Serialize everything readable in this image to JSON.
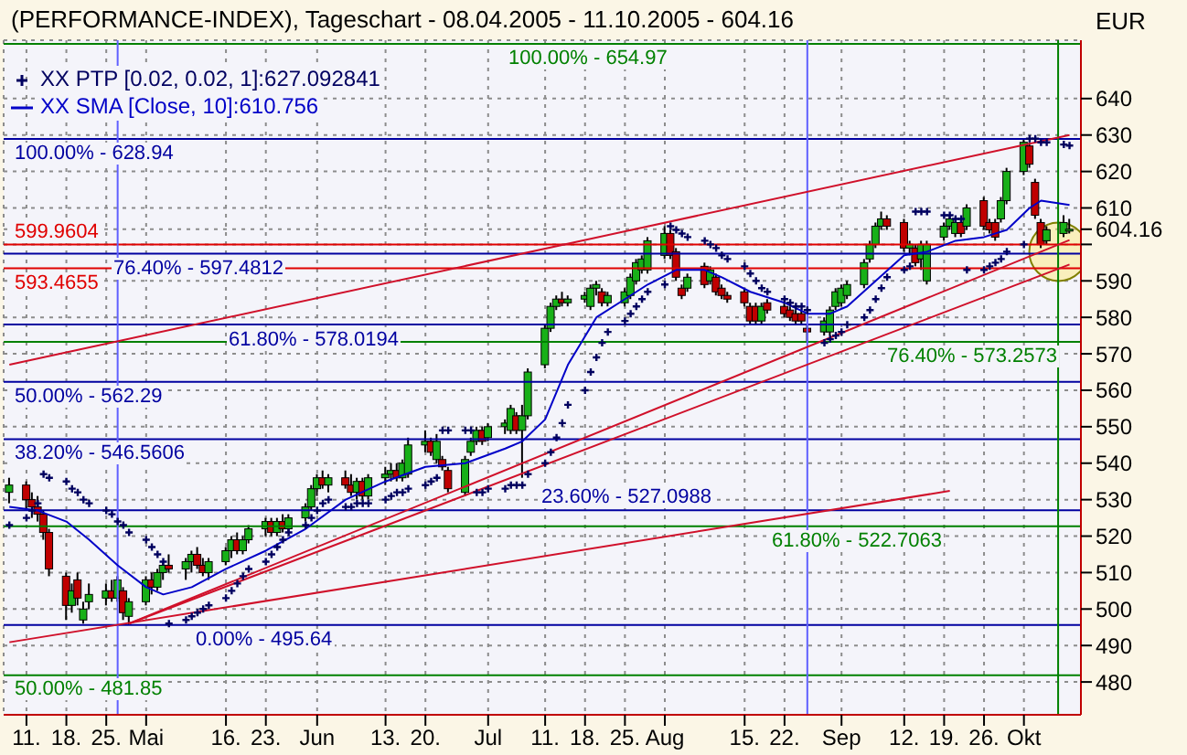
{
  "chart_data": {
    "type": "candlestick",
    "title": "(PERFORMANCE-INDEX), Tageschart - 08.04.2005 - 11.10.2005 - 604.16",
    "ylabel": "EUR",
    "x": [
      "2005-04-08",
      "2005-04-11",
      "2005-04-12",
      "2005-04-13",
      "2005-04-14",
      "2005-04-15",
      "2005-04-18",
      "2005-04-19",
      "2005-04-20",
      "2005-04-21",
      "2005-04-22",
      "2005-04-25",
      "2005-04-26",
      "2005-04-27",
      "2005-04-28",
      "2005-04-29",
      "2005-05-02",
      "2005-05-03",
      "2005-05-04",
      "2005-05-05",
      "2005-05-06",
      "2005-05-09",
      "2005-05-10",
      "2005-05-11",
      "2005-05-12",
      "2005-05-13",
      "2005-05-16",
      "2005-05-17",
      "2005-05-18",
      "2005-05-19",
      "2005-05-20",
      "2005-05-23",
      "2005-05-24",
      "2005-05-25",
      "2005-05-26",
      "2005-05-27",
      "2005-05-30",
      "2005-05-31",
      "2005-06-01",
      "2005-06-02",
      "2005-06-03",
      "2005-06-06",
      "2005-06-07",
      "2005-06-08",
      "2005-06-09",
      "2005-06-10",
      "2005-06-13",
      "2005-06-14",
      "2005-06-15",
      "2005-06-16",
      "2005-06-17",
      "2005-06-20",
      "2005-06-21",
      "2005-06-22",
      "2005-06-23",
      "2005-06-24",
      "2005-06-27",
      "2005-06-28",
      "2005-06-29",
      "2005-06-30",
      "2005-07-01",
      "2005-07-04",
      "2005-07-05",
      "2005-07-06",
      "2005-07-07",
      "2005-07-08",
      "2005-07-11",
      "2005-07-12",
      "2005-07-13",
      "2005-07-14",
      "2005-07-15",
      "2005-07-18",
      "2005-07-19",
      "2005-07-20",
      "2005-07-21",
      "2005-07-22",
      "2005-07-25",
      "2005-07-26",
      "2005-07-27",
      "2005-07-28",
      "2005-07-29",
      "2005-08-01",
      "2005-08-02",
      "2005-08-03",
      "2005-08-04",
      "2005-08-05",
      "2005-08-08",
      "2005-08-09",
      "2005-08-10",
      "2005-08-11",
      "2005-08-12",
      "2005-08-15",
      "2005-08-16",
      "2005-08-17",
      "2005-08-18",
      "2005-08-19",
      "2005-08-22",
      "2005-08-23",
      "2005-08-24",
      "2005-08-25",
      "2005-08-26",
      "2005-08-29",
      "2005-08-30",
      "2005-08-31",
      "2005-09-01",
      "2005-09-02",
      "2005-09-05",
      "2005-09-06",
      "2005-09-07",
      "2005-09-08",
      "2005-09-09",
      "2005-09-12",
      "2005-09-13",
      "2005-09-14",
      "2005-09-15",
      "2005-09-16",
      "2005-09-19",
      "2005-09-20",
      "2005-09-21",
      "2005-09-22",
      "2005-09-23",
      "2005-09-26",
      "2005-09-27",
      "2005-09-28",
      "2005-09-29",
      "2005-09-30",
      "2005-10-03",
      "2005-10-04",
      "2005-10-05",
      "2005-10-06",
      "2005-10-07",
      "2005-10-10",
      "2005-10-11"
    ],
    "ohlc": [
      [
        532,
        536,
        529,
        534
      ],
      [
        534,
        535,
        527,
        530
      ],
      [
        530,
        532,
        525,
        528
      ],
      [
        528,
        531,
        524,
        526
      ],
      [
        526,
        527,
        519,
        521
      ],
      [
        521,
        522,
        509,
        511
      ],
      [
        509,
        510,
        497,
        501
      ],
      [
        501,
        507,
        499,
        505
      ],
      [
        508,
        510,
        501,
        503
      ],
      [
        497,
        502,
        496,
        500
      ],
      [
        502,
        507,
        500,
        504
      ],
      [
        503,
        507,
        501,
        505
      ],
      [
        505,
        508,
        502,
        503
      ],
      [
        503,
        509,
        502,
        508
      ],
      [
        505,
        506,
        497,
        499
      ],
      [
        498,
        503,
        495.64,
        502
      ],
      [
        502,
        509,
        501,
        508
      ],
      [
        508,
        510,
        504,
        506
      ],
      [
        506,
        511,
        505,
        510
      ],
      [
        510,
        513,
        508,
        512
      ],
      [
        512,
        515,
        510,
        511
      ],
      [
        511,
        514,
        508,
        513
      ],
      [
        513,
        516,
        510,
        515
      ],
      [
        515,
        517,
        511,
        512
      ],
      [
        512,
        514,
        509,
        510
      ],
      [
        510,
        514,
        508,
        513
      ],
      [
        513,
        517,
        512,
        516
      ],
      [
        516,
        520,
        514,
        519
      ],
      [
        519,
        521,
        515,
        516
      ],
      [
        516,
        520,
        515,
        519
      ],
      [
        519,
        523,
        518,
        522
      ],
      [
        522,
        525,
        520,
        524
      ],
      [
        524,
        525,
        520,
        521
      ],
      [
        521,
        525,
        520,
        524
      ],
      [
        524,
        526,
        521,
        522
      ],
      [
        522,
        526,
        521,
        525
      ],
      [
        525,
        529,
        524,
        528
      ],
      [
        528,
        534,
        527,
        533
      ],
      [
        533,
        537,
        531,
        536
      ],
      [
        536,
        538,
        533,
        534
      ],
      [
        534,
        537,
        532,
        536
      ],
      [
        536,
        538,
        533,
        534
      ],
      [
        534,
        537,
        531,
        532
      ],
      [
        532,
        536,
        530,
        535
      ],
      [
        535,
        536,
        530,
        531
      ],
      [
        531,
        537,
        530,
        536
      ],
      [
        536,
        539,
        534,
        537
      ],
      [
        537,
        540,
        535,
        538
      ],
      [
        538,
        540,
        535,
        536
      ],
      [
        536,
        541,
        535,
        540
      ],
      [
        537,
        547,
        536,
        545
      ],
      [
        545,
        549,
        543,
        546
      ],
      [
        546,
        547,
        542,
        543
      ],
      [
        541,
        548,
        540,
        546
      ],
      [
        541,
        542,
        538,
        539
      ],
      [
        538,
        539,
        532,
        533
      ],
      [
        532,
        542,
        531,
        541
      ],
      [
        543,
        547,
        542,
        546
      ],
      [
        546,
        550,
        545,
        549
      ],
      [
        549,
        550,
        545,
        546
      ],
      [
        547,
        551,
        546,
        550
      ],
      [
        550,
        552,
        548,
        551
      ],
      [
        549,
        556,
        548,
        555
      ],
      [
        553,
        554,
        548,
        549
      ],
      [
        549,
        556,
        536,
        553
      ],
      [
        553,
        566,
        552,
        565
      ],
      [
        567,
        578,
        566,
        577
      ],
      [
        577,
        584,
        576,
        583
      ],
      [
        583,
        586,
        582,
        585
      ],
      [
        585,
        587,
        583,
        584
      ],
      [
        584,
        586,
        583,
        585
      ],
      [
        585,
        587,
        584,
        586
      ],
      [
        583,
        589,
        582,
        588
      ],
      [
        588,
        590,
        586,
        589
      ],
      [
        587,
        588,
        583,
        584
      ],
      [
        584,
        587,
        583,
        586
      ],
      [
        584,
        588,
        583,
        587
      ],
      [
        586,
        592,
        585,
        591
      ],
      [
        590,
        596,
        589,
        595
      ],
      [
        593,
        597,
        592,
        596
      ],
      [
        593,
        602,
        592,
        601
      ],
      [
        597,
        605,
        596,
        603
      ],
      [
        603,
        604,
        596,
        597
      ],
      [
        598,
        599,
        590,
        591
      ],
      [
        588,
        589,
        585,
        586
      ],
      [
        588,
        592,
        587,
        591
      ],
      [
        594,
        595,
        588,
        589
      ],
      [
        590,
        594,
        589,
        593
      ],
      [
        591,
        592,
        586,
        587
      ],
      [
        588,
        589,
        585,
        586
      ],
      [
        586,
        587,
        584,
        585
      ],
      [
        587,
        588,
        583,
        584
      ],
      [
        583,
        584,
        578,
        579
      ],
      [
        583,
        584,
        578,
        579
      ],
      [
        579,
        584,
        578,
        583
      ],
      [
        584,
        585,
        581,
        582
      ],
      [
        583,
        584,
        580,
        581
      ],
      [
        582,
        583,
        579,
        580
      ],
      [
        581,
        582,
        578,
        579
      ],
      [
        581,
        582,
        578,
        579
      ],
      [
        577,
        578,
        573,
        576
      ],
      [
        576,
        580,
        575,
        579
      ],
      [
        576,
        583,
        575,
        582
      ],
      [
        583,
        588,
        582,
        587
      ],
      [
        584,
        589,
        583,
        588
      ],
      [
        586,
        590,
        585,
        589
      ],
      [
        589,
        596,
        588,
        595
      ],
      [
        596,
        601,
        595,
        600
      ],
      [
        600,
        606,
        599,
        605
      ],
      [
        605,
        609,
        604,
        607
      ],
      [
        607,
        608,
        604,
        605
      ],
      [
        606,
        607,
        598,
        599
      ],
      [
        599,
        601,
        597,
        600
      ],
      [
        599,
        600,
        594,
        595
      ],
      [
        596,
        601,
        593,
        600
      ],
      [
        590,
        601,
        589,
        600
      ],
      [
        602,
        606,
        601,
        605
      ],
      [
        605,
        608,
        604,
        607
      ],
      [
        603,
        607,
        602,
        606
      ],
      [
        606,
        607,
        602,
        603
      ],
      [
        605,
        611,
        604,
        610
      ],
      [
        612,
        613,
        604,
        605
      ],
      [
        606,
        607,
        603,
        604
      ],
      [
        606,
        607,
        601,
        602
      ],
      [
        607,
        613,
        606,
        612
      ],
      [
        612,
        621,
        611,
        620
      ],
      [
        620,
        629,
        619,
        628
      ],
      [
        627,
        628,
        621,
        622
      ],
      [
        617,
        618,
        607,
        608
      ],
      [
        606,
        607,
        599,
        600
      ],
      [
        601,
        605,
        600,
        604
      ],
      [
        603,
        608,
        602,
        606
      ],
      [
        604,
        607,
        603,
        604.16
      ]
    ],
    "series": [
      {
        "name": "XX PTP [0.02, 0.02, 1]:627.092841",
        "type": "scatter",
        "marker": "cross",
        "color": "#000060",
        "x": [
          "2005-04-08",
          "2005-04-11",
          "2005-04-12",
          "2005-04-13",
          "2005-04-14",
          "2005-04-15",
          "2005-04-18",
          "2005-04-19",
          "2005-04-20",
          "2005-04-21",
          "2005-04-22",
          "2005-04-25",
          "2005-04-26",
          "2005-04-27",
          "2005-04-28",
          "2005-04-29",
          "2005-05-02",
          "2005-05-03",
          "2005-05-04",
          "2005-05-05",
          "2005-05-06",
          "2005-05-09",
          "2005-05-10",
          "2005-05-11",
          "2005-05-12",
          "2005-05-13",
          "2005-05-16",
          "2005-05-17",
          "2005-05-18",
          "2005-05-19",
          "2005-05-20",
          "2005-05-23",
          "2005-05-24",
          "2005-05-25",
          "2005-05-26",
          "2005-05-27",
          "2005-05-30",
          "2005-05-31",
          "2005-06-01",
          "2005-06-02",
          "2005-06-03",
          "2005-06-06",
          "2005-06-07",
          "2005-06-08",
          "2005-06-09",
          "2005-06-10",
          "2005-06-13",
          "2005-06-14",
          "2005-06-15",
          "2005-06-16",
          "2005-06-17",
          "2005-06-20",
          "2005-06-21",
          "2005-06-22",
          "2005-06-23",
          "2005-06-24",
          "2005-06-27",
          "2005-06-28",
          "2005-06-29",
          "2005-06-30",
          "2005-07-01",
          "2005-07-04",
          "2005-07-05",
          "2005-07-06",
          "2005-07-07",
          "2005-07-08",
          "2005-07-11",
          "2005-07-12",
          "2005-07-13",
          "2005-07-14",
          "2005-07-15",
          "2005-07-18",
          "2005-07-19",
          "2005-07-20",
          "2005-07-21",
          "2005-07-22",
          "2005-07-25",
          "2005-07-26",
          "2005-07-27",
          "2005-07-28",
          "2005-07-29",
          "2005-08-01",
          "2005-08-02",
          "2005-08-03",
          "2005-08-04",
          "2005-08-05",
          "2005-08-08",
          "2005-08-09",
          "2005-08-10",
          "2005-08-11",
          "2005-08-12",
          "2005-08-15",
          "2005-08-16",
          "2005-08-17",
          "2005-08-18",
          "2005-08-19",
          "2005-08-22",
          "2005-08-23",
          "2005-08-24",
          "2005-08-25",
          "2005-08-26",
          "2005-08-29",
          "2005-08-30",
          "2005-08-31",
          "2005-09-01",
          "2005-09-02",
          "2005-09-05",
          "2005-09-06",
          "2005-09-07",
          "2005-09-08",
          "2005-09-09",
          "2005-09-12",
          "2005-09-13",
          "2005-09-14",
          "2005-09-15",
          "2005-09-16",
          "2005-09-19",
          "2005-09-20",
          "2005-09-21",
          "2005-09-22",
          "2005-09-23",
          "2005-09-26",
          "2005-09-27",
          "2005-09-28",
          "2005-09-29",
          "2005-09-30",
          "2005-10-03",
          "2005-10-04",
          "2005-10-05",
          "2005-10-06",
          "2005-10-07",
          "2005-10-10",
          "2005-10-11"
        ],
        "values": [
          523,
          525,
          527,
          529,
          537,
          536,
          535,
          533,
          532,
          530,
          529,
          527,
          526,
          524,
          523,
          521,
          519,
          517,
          515,
          513,
          496,
          497,
          498,
          499,
          500,
          501,
          503,
          505,
          507,
          509,
          511,
          513,
          515,
          517,
          519,
          521,
          523,
          525,
          527,
          529,
          530,
          528,
          528,
          529,
          529,
          529,
          530,
          531,
          532,
          532,
          533,
          534,
          535,
          536,
          549,
          549,
          549,
          549,
          532,
          532,
          533,
          533,
          534,
          534,
          534,
          537,
          540,
          543,
          547,
          551,
          556,
          560,
          565,
          569,
          573,
          576,
          579,
          581,
          583,
          585,
          587,
          589,
          605,
          604,
          603,
          602,
          601,
          600,
          599,
          597,
          596,
          594,
          592,
          590,
          588,
          587,
          585,
          584,
          583,
          583,
          582,
          573,
          574,
          575,
          576,
          578,
          580,
          582,
          585,
          588,
          591,
          593,
          594,
          609,
          609,
          609,
          608,
          608,
          607,
          607,
          593,
          593,
          594,
          595,
          596,
          598,
          600,
          629,
          629,
          628,
          628,
          627.4,
          627.1
        ]
      },
      {
        "name": "XX SMA [Close, 10]:610.756",
        "type": "line",
        "color": "#0000c8",
        "x": [
          "2005-04-08",
          "2005-04-13",
          "2005-04-18",
          "2005-04-22",
          "2005-04-27",
          "2005-05-02",
          "2005-05-05",
          "2005-05-10",
          "2005-05-16",
          "2005-05-23",
          "2005-05-30",
          "2005-06-06",
          "2005-06-13",
          "2005-06-20",
          "2005-06-27",
          "2005-07-04",
          "2005-07-07",
          "2005-07-11",
          "2005-07-15",
          "2005-07-20",
          "2005-07-25",
          "2005-07-29",
          "2005-08-03",
          "2005-08-08",
          "2005-08-11",
          "2005-08-16",
          "2005-08-22",
          "2005-08-26",
          "2005-08-30",
          "2005-09-02",
          "2005-09-07",
          "2005-09-12",
          "2005-09-16",
          "2005-09-21",
          "2005-09-26",
          "2005-09-30",
          "2005-10-04",
          "2005-10-06",
          "2005-10-11"
        ],
        "values": [
          528,
          527,
          524,
          519,
          512,
          506,
          504,
          506,
          511,
          516,
          522,
          530,
          535,
          539,
          540,
          544,
          546,
          552,
          567,
          580,
          585,
          589,
          593,
          593,
          591,
          587,
          584,
          581,
          581,
          583,
          590,
          597,
          598,
          601,
          602,
          604,
          610,
          612,
          610.8
        ]
      },
      {
        "type": "line",
        "color": "#d0102a",
        "x": [
          "2005-04-08",
          "2005-10-11"
        ],
        "values": [
          567,
          630
        ]
      },
      {
        "type": "line",
        "color": "#d0102a",
        "x": [
          "2005-04-08",
          "2005-09-20"
        ],
        "values": [
          490.9,
          532.4
        ]
      },
      {
        "type": "line",
        "color": "#d0102a",
        "x": [
          "2005-04-29",
          "2005-10-11"
        ],
        "values": [
          496,
          601.2
        ]
      },
      {
        "type": "line",
        "color": "#d0102a",
        "x": [
          "2005-04-29",
          "2005-10-11"
        ],
        "values": [
          496,
          594.5
        ]
      }
    ],
    "xlim": [
      "2005-04-07",
      "2005-10-13"
    ],
    "xticks": [
      {
        "value": "2005-04-11",
        "label": "11."
      },
      {
        "value": "2005-04-18",
        "label": "18."
      },
      {
        "value": "2005-04-25",
        "label": "25."
      },
      {
        "value": "2005-05-02",
        "label": "Mai"
      },
      {
        "value": "2005-05-16",
        "label": "16."
      },
      {
        "value": "2005-05-23",
        "label": "23."
      },
      {
        "value": "2005-06-01",
        "label": "Jun"
      },
      {
        "value": "2005-06-13",
        "label": "13."
      },
      {
        "value": "2005-06-20",
        "label": "20."
      },
      {
        "value": "2005-07-01",
        "label": "Jul"
      },
      {
        "value": "2005-07-11",
        "label": "11."
      },
      {
        "value": "2005-07-18",
        "label": "18."
      },
      {
        "value": "2005-07-25",
        "label": "25."
      },
      {
        "value": "2005-08-01",
        "label": "Aug"
      },
      {
        "value": "2005-08-15",
        "label": "15."
      },
      {
        "value": "2005-08-22",
        "label": "22."
      },
      {
        "value": "2005-09-01",
        "label": "Sep"
      },
      {
        "value": "2005-09-12",
        "label": "12."
      },
      {
        "value": "2005-09-19",
        "label": "19."
      },
      {
        "value": "2005-09-26",
        "label": "26."
      },
      {
        "value": "2005-10-03",
        "label": "Okt"
      }
    ],
    "ylim": [
      471,
      656
    ],
    "yticks": [
      480,
      490,
      500,
      510,
      520,
      530,
      540,
      550,
      560,
      570,
      580,
      590,
      {
        "value": 600,
        "label": null
      },
      {
        "value": 604.16,
        "label": "604.16"
      },
      610,
      620,
      630,
      640
    ],
    "grid": true,
    "legend": "top left",
    "annotations": [
      {
        "text": "100.00% - 654.97",
        "y": 654.97
      },
      {
        "text": "100.00% - 628.94",
        "y": 628.94
      },
      {
        "text": "76.40% - 597.4812",
        "y": 597.4812
      },
      {
        "text": "61.80% - 578.0194",
        "y": 578.0194
      },
      {
        "text": "76.40% - 573.2573",
        "y": 573.2573
      },
      {
        "text": "50.00% - 562.29",
        "y": 562.29
      },
      {
        "text": "38.20% - 546.5606",
        "y": 546.5606
      },
      {
        "text": "23.60% - 527.0988",
        "y": 527.0988
      },
      {
        "text": "61.80% - 522.7063",
        "y": 522.7063
      },
      {
        "text": "0.00% - 495.64",
        "y": 495.64
      },
      {
        "text": "50.00% - 481.85",
        "y": 481.85
      }
    ],
    "ref_lines": [
      {
        "axis": "y",
        "value": 654.97,
        "color": "#008000"
      },
      {
        "axis": "y",
        "value": 628.94,
        "color": "#0000a0"
      },
      {
        "axis": "y",
        "value": 599.9604,
        "label": "599.9604",
        "color": "#e00000"
      },
      {
        "axis": "y",
        "value": 597.4812,
        "color": "#0000a0"
      },
      {
        "axis": "y",
        "value": 593.4655,
        "label": "593.4655",
        "color": "#e00000"
      },
      {
        "axis": "y",
        "value": 578.0194,
        "color": "#0000a0"
      },
      {
        "axis": "y",
        "value": 573.2573,
        "color": "#008000"
      },
      {
        "axis": "y",
        "value": 562.29,
        "color": "#0000a0"
      },
      {
        "axis": "y",
        "value": 546.5606,
        "color": "#0000a0"
      },
      {
        "axis": "y",
        "value": 527.0988,
        "color": "#0000a0"
      },
      {
        "axis": "y",
        "value": 522.7063,
        "color": "#008000"
      },
      {
        "axis": "y",
        "value": 495.64,
        "color": "#0000a0"
      },
      {
        "axis": "y",
        "value": 481.85,
        "color": "#008000"
      },
      {
        "axis": "x",
        "value": "2005-04-27",
        "color": "#6060ff"
      },
      {
        "axis": "x",
        "value": "2005-08-26",
        "color": "#6060ff"
      },
      {
        "axis": "x",
        "value": "2005-10-09",
        "color": "#008000"
      }
    ]
  }
}
